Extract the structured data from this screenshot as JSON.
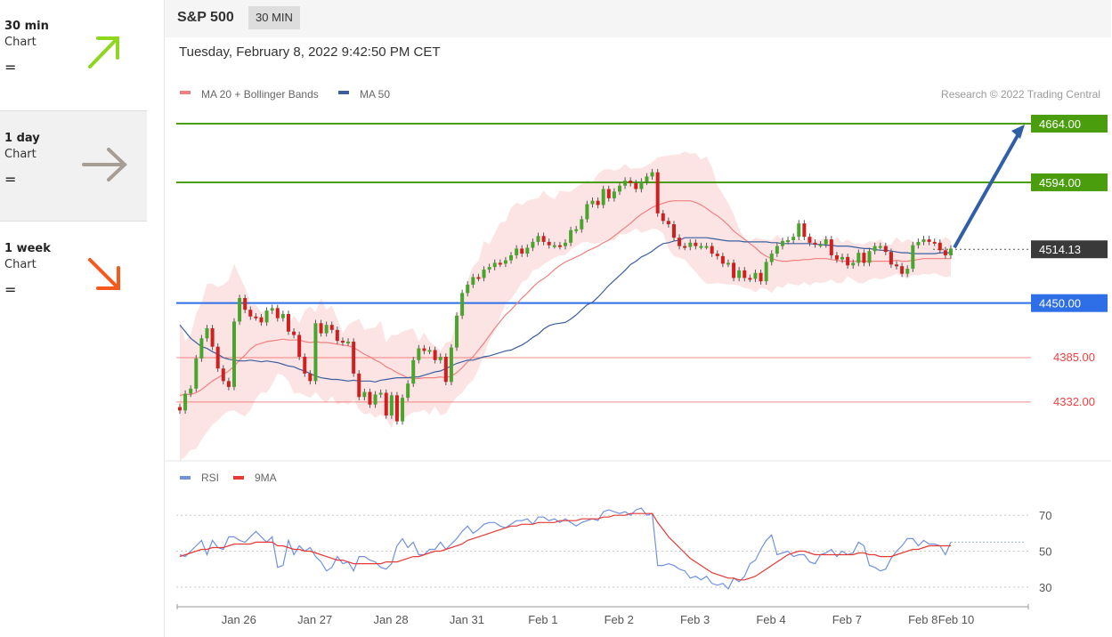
{
  "sidebar": {
    "items": [
      {
        "period": "30 min",
        "label": "Chart",
        "eq": "=",
        "direction": "up",
        "color": "#8fd61e"
      },
      {
        "period": "1 day",
        "label": "Chart",
        "eq": "=",
        "direction": "right",
        "color": "#a69d94"
      },
      {
        "period": "1 week",
        "label": "Chart",
        "eq": "=",
        "direction": "down",
        "color": "#f35a1c"
      }
    ]
  },
  "header": {
    "symbol": "S&P 500",
    "timeframe": "30 MIN",
    "date": "Tuesday, February 8, 2022 9:42:50 PM CET"
  },
  "legend": {
    "ma20": "MA 20 + Bollinger Bands",
    "ma50": "MA 50",
    "credit": "Research © 2022 Trading Central"
  },
  "rsi_legend": {
    "rsi": "RSI",
    "ma": "9MA"
  },
  "colors": {
    "resistance": "#4a9e0e",
    "support_blue": "#2e6ee6",
    "support_red": "#f04040",
    "ma20": "#f08080",
    "ma50": "#3a5f9f",
    "bollinger": "#fde1e1",
    "up": "#4aa52e",
    "down": "#d01f1f",
    "last": "#3a3a3a",
    "rsi": "#7090e0",
    "rsi_ma": "#e53935"
  },
  "chart_data": {
    "type": "candlestick",
    "symbol": "S&P 500",
    "timeframe": "30 MIN",
    "x_labels": [
      "Jan 26",
      "Jan 27",
      "Jan 28",
      "Jan 31",
      "Feb 1",
      "Feb 2",
      "Feb 3",
      "Feb 4",
      "Feb 7",
      "Feb 8",
      "Feb 10"
    ],
    "y_range": [
      4264,
      4682
    ],
    "levels": [
      {
        "value": 4664,
        "label": "4664.00",
        "kind": "resistance"
      },
      {
        "value": 4594,
        "label": "4594.00",
        "kind": "resistance"
      },
      {
        "value": 4514.13,
        "label": "4514.13",
        "kind": "last"
      },
      {
        "value": 4450,
        "label": "4450.00",
        "kind": "support-blue"
      },
      {
        "value": 4385,
        "label": "4385.00",
        "kind": "support-red"
      },
      {
        "value": 4332,
        "label": "4332.00",
        "kind": "support-red"
      }
    ],
    "close": [
      4322,
      4342,
      4348,
      4384,
      4408,
      4420,
      4398,
      4372,
      4357,
      4350,
      4428,
      4456,
      4442,
      4434,
      4433,
      4427,
      4441,
      4444,
      4432,
      4437,
      4416,
      4412,
      4386,
      4366,
      4357,
      4426,
      4414,
      4424,
      4418,
      4405,
      4403,
      4404,
      4366,
      4338,
      4344,
      4329,
      4341,
      4343,
      4316,
      4340,
      4309,
      4337,
      4354,
      4382,
      4396,
      4393,
      4394,
      4382,
      4386,
      4356,
      4397,
      4435,
      4462,
      4472,
      4481,
      4480,
      4490,
      4493,
      4498,
      4497,
      4501,
      4507,
      4515,
      4509,
      4516,
      4523,
      4530,
      4523,
      4519,
      4519,
      4518,
      4522,
      4537,
      4538,
      4550,
      4568,
      4572,
      4567,
      4586,
      4575,
      4583,
      4590,
      4596,
      4593,
      4586,
      4595,
      4601,
      4606,
      4557,
      4548,
      4544,
      4528,
      4518,
      4517,
      4522,
      4518,
      4518,
      4518,
      4509,
      4506,
      4497,
      4498,
      4480,
      4489,
      4480,
      4479,
      4486,
      4476,
      4499,
      4509,
      4518,
      4524,
      4525,
      4529,
      4545,
      4529,
      4522,
      4520,
      4520,
      4526,
      4507,
      4502,
      4505,
      4495,
      4498,
      4510,
      4498,
      4512,
      4518,
      4518,
      4511,
      4496,
      4494,
      4485,
      4491,
      4519,
      4523,
      4526,
      4523,
      4522,
      4513,
      4507,
      4515
    ],
    "ma20": [
      4340,
      4341,
      4341,
      4343,
      4347,
      4352,
      4357,
      4361,
      4365,
      4369,
      4375,
      4382,
      4388,
      4395,
      4400,
      4402,
      4404,
      4405,
      4406,
      4407,
      4406,
      4406,
      4406,
      4404,
      4403,
      4404,
      4403,
      4403,
      4402,
      4401,
      4400,
      4399,
      4397,
      4393,
      4389,
      4386,
      4382,
      4379,
      4374,
      4371,
      4367,
      4364,
      4361,
      4360,
      4360,
      4361,
      4361,
      4361,
      4362,
      4361,
      4363,
      4367,
      4373,
      4380,
      4386,
      4394,
      4402,
      4411,
      4420,
      4428,
      4436,
      4442,
      4449,
      4456,
      4462,
      4469,
      4475,
      4479,
      4484,
      4490,
      4495,
      4499,
      4502,
      4505,
      4508,
      4512,
      4515,
      4518,
      4522,
      4525,
      4530,
      4535,
      4540,
      4545,
      4551,
      4556,
      4560,
      4564,
      4567,
      4569,
      4571,
      4572,
      4572,
      4572,
      4572,
      4570,
      4567,
      4563,
      4558,
      4554,
      4549,
      4543,
      4536,
      4531,
      4526,
      4521,
      4516,
      4510,
      4506,
      4503,
      4501,
      4500,
      4500,
      4501,
      4501,
      4502,
      4502,
      4503,
      4503,
      4503,
      4502,
      4501,
      4500,
      4500,
      4500,
      4500,
      4500,
      4500,
      4500,
      4500,
      4500,
      4500,
      4501,
      4500,
      4500,
      4501,
      4502,
      4503,
      4503,
      4503,
      4503,
      4503,
      4503
    ],
    "upper_band": [
      4429,
      4405,
      4412,
      4437,
      4451,
      4473,
      4473,
      4469,
      4472,
      4477,
      4497,
      4482,
      4469,
      4448,
      4448,
      4439,
      4442,
      4439,
      4447,
      4433,
      4425,
      4435,
      4426,
      4441,
      4446,
      4439,
      4456,
      4442,
      4447,
      4431,
      4414,
      4424,
      4428,
      4431,
      4418,
      4420,
      4421,
      4429,
      4403,
      4412,
      4412,
      4416,
      4418,
      4420,
      4404,
      4415,
      4404,
      4399,
      4393,
      4403,
      4405,
      4434,
      4450,
      4477,
      4494,
      4500,
      4524,
      4520,
      4533,
      4546,
      4547,
      4564,
      4570,
      4567,
      4572,
      4574,
      4575,
      4584,
      4577,
      4574,
      4584,
      4583,
      4583,
      4588,
      4592,
      4597,
      4594,
      4604,
      4609,
      4610,
      4608,
      4610,
      4616,
      4610,
      4611,
      4611,
      4614,
      4618,
      4624,
      4625,
      4626,
      4627,
      4627,
      4631,
      4628,
      4629,
      4621,
      4625,
      4612,
      4590,
      4580,
      4569,
      4556,
      4538,
      4527,
      4524,
      4528,
      4527,
      4525,
      4525,
      4531,
      4525,
      4526,
      4523,
      4528,
      4523,
      4531,
      4526,
      4525,
      4530,
      4522,
      4529,
      4522,
      4526,
      4521,
      4521,
      4520,
      4524,
      4523,
      4526,
      4519,
      4520,
      4529,
      4522,
      4526,
      4524,
      4520,
      4527,
      4524,
      4519,
      4523,
      4529,
      4524
    ],
    "lower_band": [
      4262,
      4267,
      4275,
      4276,
      4287,
      4296,
      4305,
      4310,
      4317,
      4321,
      4322,
      4318,
      4315,
      4322,
      4336,
      4344,
      4343,
      4353,
      4366,
      4364,
      4357,
      4342,
      4343,
      4340,
      4337,
      4344,
      4336,
      4331,
      4339,
      4329,
      4332,
      4329,
      4335,
      4323,
      4317,
      4319,
      4313,
      4317,
      4312,
      4301,
      4318,
      4310,
      4316,
      4320,
      4320,
      4323,
      4317,
      4327,
      4316,
      4318,
      4330,
      4338,
      4343,
      4352,
      4358,
      4371,
      4387,
      4406,
      4416,
      4434,
      4449,
      4455,
      4464,
      4475,
      4478,
      4489,
      4491,
      4496,
      4500,
      4504,
      4507,
      4507,
      4514,
      4518,
      4522,
      4523,
      4521,
      4521,
      4524,
      4525,
      4525,
      4532,
      4532,
      4535,
      4539,
      4534,
      4536,
      4539,
      4538,
      4533,
      4515,
      4506,
      4504,
      4502,
      4494,
      4487,
      4479,
      4473,
      4473,
      4474,
      4473,
      4472,
      4472,
      4471,
      4468,
      4467,
      4463,
      4468,
      4467,
      4462,
      4470,
      4468,
      4474,
      4472,
      4471,
      4475,
      4471,
      4475,
      4474,
      4475,
      4478,
      4474,
      4474,
      4482,
      4478,
      4474,
      4474,
      4478,
      4480,
      4478,
      4480,
      4482,
      4485,
      4482,
      4479,
      4484,
      4483,
      4485,
      4484,
      4486,
      4483,
      4481,
      4482
    ],
    "ma50": [
      4424,
      4416,
      4408,
      4403,
      4398,
      4396,
      4392,
      4389,
      4385,
      4383,
      4382,
      4381,
      4381,
      4382,
      4381,
      4380,
      4381,
      4380,
      4379,
      4377,
      4375,
      4374,
      4371,
      4369,
      4366,
      4363,
      4361,
      4360,
      4359,
      4359,
      4358,
      4357,
      4358,
      4357,
      4357,
      4357,
      4356,
      4358,
      4359,
      4360,
      4361,
      4361,
      4361,
      4362,
      4362,
      4364,
      4366,
      4368,
      4369,
      4372,
      4375,
      4378,
      4380,
      4382,
      4382,
      4384,
      4386,
      4387,
      4389,
      4391,
      4393,
      4394,
      4397,
      4400,
      4404,
      4409,
      4413,
      4419,
      4423,
      4425,
      4426,
      4427,
      4431,
      4436,
      4442,
      4448,
      4451,
      4457,
      4464,
      4471,
      4477,
      4483,
      4489,
      4496,
      4500,
      4505,
      4508,
      4512,
      4517,
      4521,
      4522,
      4524,
      4525,
      4528,
      4528,
      4528,
      4528,
      4528,
      4527,
      4526,
      4525,
      4524,
      4524,
      4524,
      4523,
      4523,
      4523,
      4523,
      4523,
      4522,
      4522,
      4521,
      4521,
      4521,
      4521,
      4521,
      4521,
      4520,
      4520,
      4519,
      4519,
      4518,
      4518,
      4518,
      4517,
      4516,
      4515,
      4515,
      4514,
      4513,
      4513,
      4512,
      4511,
      4510,
      4510,
      4509,
      4509,
      4509,
      4509,
      4509,
      4510,
      4510,
      4510
    ],
    "rsi_range": [
      20,
      82
    ],
    "rsi_levels": [
      70,
      50,
      30
    ],
    "rsi": [
      48,
      47,
      50,
      53,
      56,
      48,
      56,
      52,
      51,
      58,
      58,
      56,
      55,
      58,
      61,
      58,
      55,
      58,
      41,
      42,
      56,
      48,
      53,
      50,
      52,
      47,
      44,
      39,
      41,
      47,
      43,
      44,
      39,
      47,
      47,
      45,
      44,
      41,
      40,
      43,
      53,
      57,
      52,
      55,
      48,
      48,
      51,
      51,
      55,
      51,
      54,
      57,
      61,
      64,
      60,
      62,
      65,
      66,
      66,
      64,
      63,
      65,
      67,
      67,
      68,
      65,
      69,
      69,
      67,
      68,
      66,
      68,
      66,
      64,
      66,
      67,
      68,
      67,
      72,
      73,
      72,
      71,
      72,
      70,
      73,
      74,
      70,
      71,
      42,
      42,
      43,
      42,
      40,
      39,
      35,
      36,
      34,
      36,
      32,
      31,
      32,
      29,
      35,
      33,
      36,
      43,
      45,
      51,
      56,
      59,
      48,
      49,
      50,
      47,
      48,
      48,
      44,
      43,
      48,
      49,
      51,
      47,
      50,
      48,
      49,
      55,
      53,
      42,
      41,
      39,
      40,
      46,
      50,
      53,
      57,
      57,
      53,
      56,
      54,
      54,
      53,
      48,
      55
    ],
    "rsi_ma": [
      47,
      48,
      49,
      50,
      51,
      51,
      52,
      52,
      52,
      53,
      54,
      54,
      54,
      54,
      55,
      55,
      55,
      55,
      53,
      53,
      52,
      51,
      51,
      50,
      50,
      49,
      48,
      47,
      46,
      45,
      45,
      44,
      43,
      43,
      43,
      43,
      43,
      43,
      44,
      44,
      44,
      45,
      46,
      47,
      47,
      48,
      49,
      50,
      50,
      51,
      52,
      53,
      54,
      56,
      57,
      58,
      59,
      60,
      61,
      62,
      63,
      64,
      64,
      65,
      65,
      65,
      66,
      66,
      66,
      66,
      67,
      67,
      67,
      67,
      68,
      68,
      68,
      68,
      69,
      69,
      70,
      70,
      70,
      71,
      71,
      71,
      71,
      71,
      66,
      62,
      58,
      55,
      52,
      49,
      46,
      44,
      42,
      40,
      38,
      37,
      36,
      35,
      35,
      34,
      34,
      35,
      36,
      38,
      40,
      42,
      44,
      46,
      48,
      49,
      50,
      50,
      49,
      48,
      48,
      48,
      48,
      48,
      48,
      48,
      48,
      49,
      49,
      48,
      48,
      47,
      47,
      47,
      48,
      49,
      50,
      51,
      51,
      52,
      53,
      53,
      53,
      53,
      53
    ]
  }
}
